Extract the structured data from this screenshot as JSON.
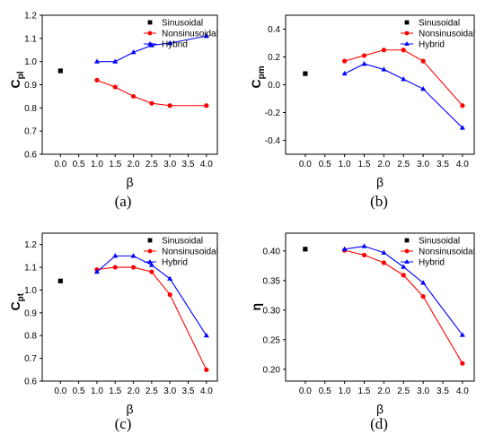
{
  "colors": {
    "sinusoidal": "#000000",
    "nonsinusoidal": "#ff0000",
    "hybrid": "#0000ff"
  },
  "chart_data": [
    {
      "type": "line",
      "panel_label": "(a)",
      "xlabel": "β",
      "ylabel": "C",
      "ylabel_sub": "pl",
      "xlim": [
        -0.5,
        4.3
      ],
      "ylim": [
        0.6,
        1.2
      ],
      "x_ticks": [
        "0.0",
        "0.5",
        "1.0",
        "1.5",
        "2.0",
        "2.5",
        "3.0",
        "3.5",
        "4.0"
      ],
      "y_ticks": [
        "0.6",
        "0.7",
        "0.8",
        "0.9",
        "1.0",
        "1.1",
        "1.2"
      ],
      "legend_position": "top-right",
      "series": [
        {
          "name": "Sinusoidal",
          "marker": "square",
          "x": [
            0.0
          ],
          "y": [
            0.96
          ]
        },
        {
          "name": "Nonsinusoidal",
          "marker": "circle",
          "x": [
            1.0,
            1.5,
            2.0,
            2.5,
            3.0,
            4.0
          ],
          "y": [
            0.92,
            0.89,
            0.85,
            0.82,
            0.81,
            0.81
          ]
        },
        {
          "name": "Hybrid",
          "marker": "triangle",
          "x": [
            1.0,
            1.5,
            2.0,
            2.5,
            3.0,
            4.0
          ],
          "y": [
            1.0,
            1.0,
            1.04,
            1.07,
            1.08,
            1.11
          ]
        }
      ]
    },
    {
      "type": "line",
      "panel_label": "(b)",
      "xlabel": "β",
      "ylabel": "C",
      "ylabel_sub": "pm",
      "xlim": [
        -0.5,
        4.3
      ],
      "ylim": [
        -0.5,
        0.5
      ],
      "x_ticks": [
        "0.0",
        "0.5",
        "1.0",
        "1.5",
        "2.0",
        "2.5",
        "3.0",
        "3.5",
        "4.0"
      ],
      "y_ticks": [
        "-0.4",
        "-0.2",
        "0.0",
        "0.2",
        "0.4"
      ],
      "legend_position": "top-right",
      "series": [
        {
          "name": "Sinusoidal",
          "marker": "square",
          "x": [
            0.0
          ],
          "y": [
            0.08
          ]
        },
        {
          "name": "Nonsinusoidal",
          "marker": "circle",
          "x": [
            1.0,
            1.5,
            2.0,
            2.5,
            3.0,
            4.0
          ],
          "y": [
            0.17,
            0.21,
            0.25,
            0.25,
            0.17,
            -0.15
          ]
        },
        {
          "name": "Hybrid",
          "marker": "triangle",
          "x": [
            1.0,
            1.5,
            2.0,
            2.5,
            3.0,
            4.0
          ],
          "y": [
            0.08,
            0.15,
            0.11,
            0.04,
            -0.03,
            -0.31
          ]
        }
      ]
    },
    {
      "type": "line",
      "panel_label": "(c)",
      "xlabel": "β",
      "ylabel": "C",
      "ylabel_sub": "pt",
      "xlim": [
        -0.5,
        4.3
      ],
      "ylim": [
        0.6,
        1.25
      ],
      "x_ticks": [
        "0.0",
        "0.5",
        "1.0",
        "1.5",
        "2.0",
        "2.5",
        "3.0",
        "3.5",
        "4.0"
      ],
      "y_ticks": [
        "0.6",
        "0.7",
        "0.8",
        "0.9",
        "1.0",
        "1.1",
        "1.2"
      ],
      "legend_position": "top-right",
      "series": [
        {
          "name": "Sinusoidal",
          "marker": "square",
          "x": [
            0.0
          ],
          "y": [
            1.04
          ]
        },
        {
          "name": "Nonsinusoidal",
          "marker": "circle",
          "x": [
            1.0,
            1.5,
            2.0,
            2.5,
            3.0,
            4.0
          ],
          "y": [
            1.09,
            1.1,
            1.1,
            1.08,
            0.98,
            0.65
          ]
        },
        {
          "name": "Hybrid",
          "marker": "triangle",
          "x": [
            1.0,
            1.5,
            2.0,
            2.5,
            3.0,
            4.0
          ],
          "y": [
            1.08,
            1.15,
            1.15,
            1.11,
            1.05,
            0.8
          ]
        }
      ]
    },
    {
      "type": "line",
      "panel_label": "(d)",
      "xlabel": "β",
      "ylabel": "η",
      "ylabel_sub": "",
      "xlim": [
        -0.5,
        4.3
      ],
      "ylim": [
        0.18,
        0.43
      ],
      "x_ticks": [
        "0.0",
        "0.5",
        "1.0",
        "1.5",
        "2.0",
        "2.5",
        "3.0",
        "3.5",
        "4.0"
      ],
      "y_ticks": [
        "0.20",
        "0.25",
        "0.30",
        "0.35",
        "0.40"
      ],
      "legend_position": "top-right",
      "series": [
        {
          "name": "Sinusoidal",
          "marker": "square",
          "x": [
            0.0
          ],
          "y": [
            0.403
          ]
        },
        {
          "name": "Nonsinusoidal",
          "marker": "circle",
          "x": [
            1.0,
            1.5,
            2.0,
            2.5,
            3.0,
            4.0
          ],
          "y": [
            0.401,
            0.393,
            0.38,
            0.359,
            0.323,
            0.21
          ]
        },
        {
          "name": "Hybrid",
          "marker": "triangle",
          "x": [
            1.0,
            1.5,
            2.0,
            2.5,
            3.0,
            4.0
          ],
          "y": [
            0.403,
            0.408,
            0.397,
            0.373,
            0.346,
            0.258
          ]
        }
      ]
    }
  ]
}
